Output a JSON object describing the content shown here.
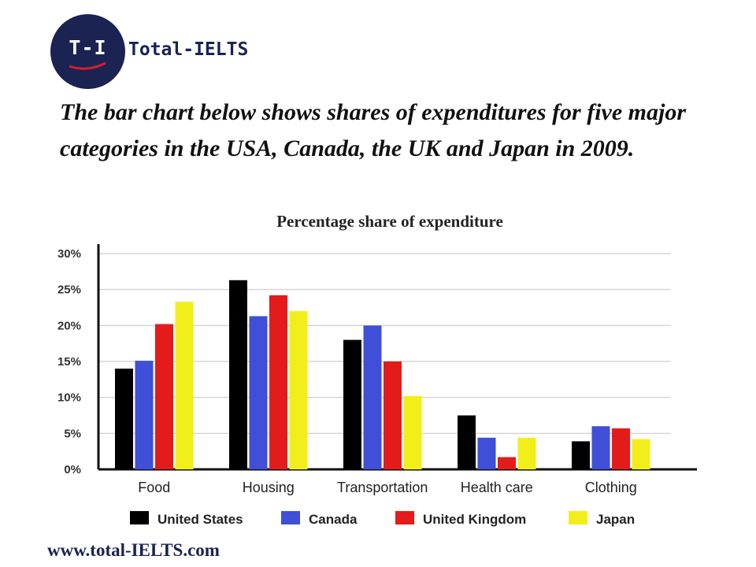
{
  "logo": {
    "monogram": "T-I",
    "name": "Total-IELTS"
  },
  "heading": "The bar chart below shows shares of expenditures for five major categories in the USA, Canada, the UK and Japan in 2009.",
  "footer_url": "www.total-IELTS.com",
  "chart_data": {
    "type": "bar",
    "title": "Percentage share of expenditure",
    "xlabel": "",
    "ylabel": "",
    "ylim": [
      0,
      30
    ],
    "yticks": [
      "0%",
      "5%",
      "10%",
      "15%",
      "20%",
      "25%",
      "30%"
    ],
    "grid": true,
    "legend_position": "bottom",
    "categories": [
      "Food",
      "Housing",
      "Transportation",
      "Health care",
      "Clothing"
    ],
    "series": [
      {
        "name": "United States",
        "color": "#000000",
        "values": [
          14,
          26.3,
          18,
          7.5,
          3.9
        ]
      },
      {
        "name": "Canada",
        "color": "#3f4fd8",
        "values": [
          15.1,
          21.3,
          20,
          4.4,
          6
        ]
      },
      {
        "name": "United Kingdom",
        "color": "#e41b1b",
        "values": [
          20.2,
          24.2,
          15,
          1.7,
          5.7
        ]
      },
      {
        "name": "Japan",
        "color": "#f2ee1a",
        "values": [
          23.3,
          22,
          10.2,
          4.4,
          4.2
        ]
      }
    ]
  }
}
